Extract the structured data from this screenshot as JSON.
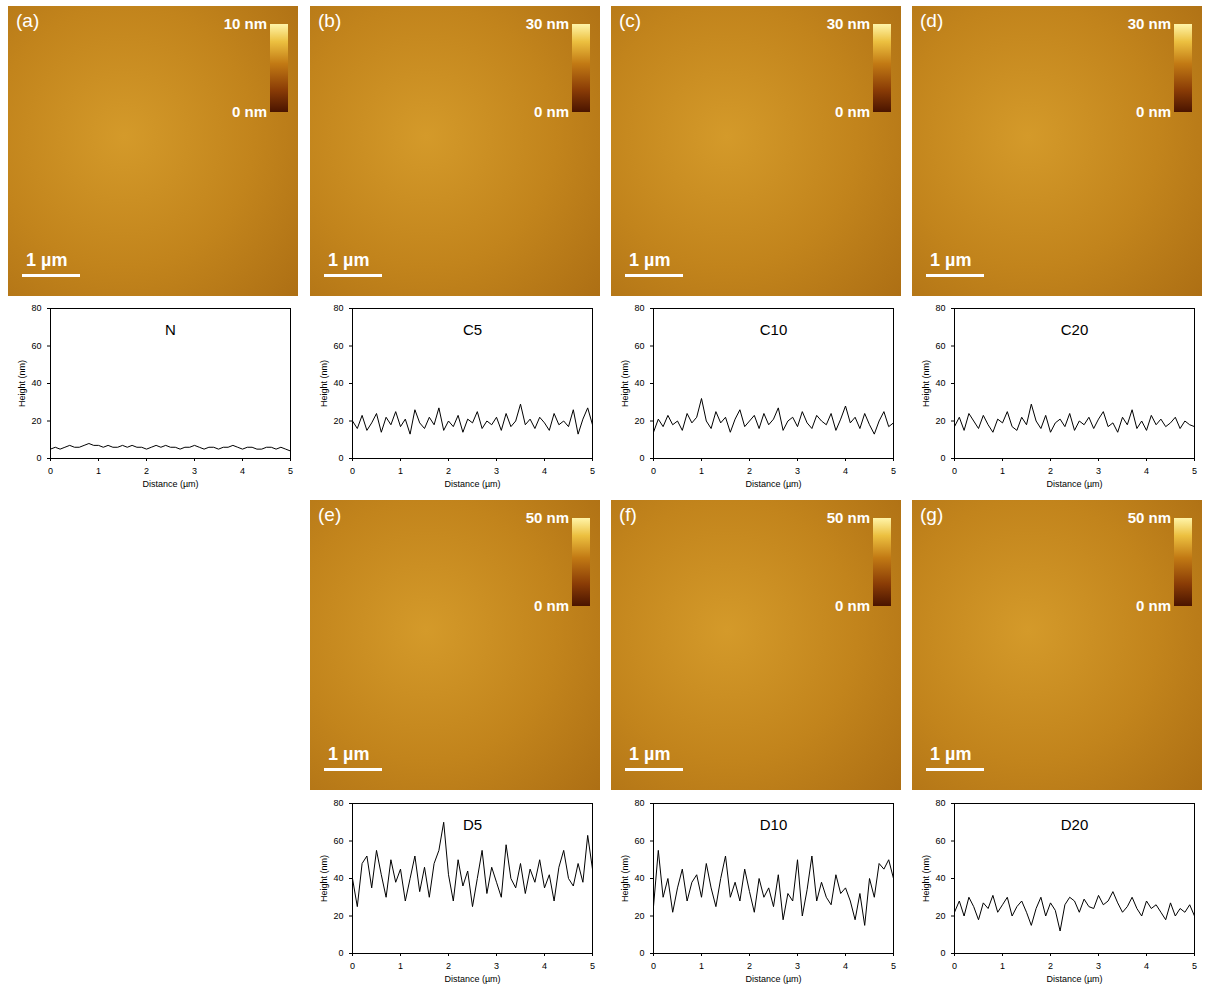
{
  "images": [
    {
      "letter": "(a)",
      "colorbar": {
        "range": [
          0,
          10
        ],
        "ticks": [
          {
            "value": 0,
            "label": "0 nm"
          },
          {
            "value": 10,
            "label": "10 nm"
          }
        ]
      },
      "scale_bar": "1 µm"
    },
    {
      "letter": "(b)",
      "colorbar": {
        "range": [
          0,
          30
        ],
        "ticks": [
          {
            "value": 0,
            "label": "0 nm"
          },
          {
            "value": 30,
            "label": "30 nm"
          }
        ]
      },
      "scale_bar": "1 µm"
    },
    {
      "letter": "(c)",
      "colorbar": {
        "range": [
          0,
          30
        ],
        "ticks": [
          {
            "value": 0,
            "label": "0 nm"
          },
          {
            "value": 30,
            "label": "30 nm"
          }
        ]
      },
      "scale_bar": "1 µm"
    },
    {
      "letter": "(d)",
      "colorbar": {
        "range": [
          0,
          30
        ],
        "ticks": [
          {
            "value": 0,
            "label": "0 nm"
          },
          {
            "value": 30,
            "label": "30 nm"
          }
        ]
      },
      "scale_bar": "1 µm"
    },
    {
      "letter": "(e)",
      "colorbar": {
        "range": [
          0,
          50
        ],
        "ticks": [
          {
            "value": 0,
            "label": "0 nm"
          },
          {
            "value": 50,
            "label": "50 nm"
          }
        ]
      },
      "scale_bar": "1 µm"
    },
    {
      "letter": "(f)",
      "colorbar": {
        "range": [
          0,
          50
        ],
        "ticks": [
          {
            "value": 0,
            "label": "0 nm"
          },
          {
            "value": 50,
            "label": "50 nm"
          }
        ]
      },
      "scale_bar": "1 µm"
    },
    {
      "letter": "(g)",
      "colorbar": {
        "range": [
          0,
          50
        ],
        "ticks": [
          {
            "value": 0,
            "label": "0 nm"
          },
          {
            "value": 50,
            "label": "50 nm"
          }
        ]
      },
      "scale_bar": "1 µm"
    }
  ],
  "chart_data": [
    {
      "type": "line",
      "title": "N",
      "x_label": "Distance (µm)",
      "y_label": "Height (nm)",
      "color": "#000000",
      "xlim": [
        0,
        5
      ],
      "ylim": [
        0,
        80
      ],
      "xticks": [
        0,
        1,
        2,
        3,
        4,
        5
      ],
      "yticks": [
        0,
        20,
        40,
        60,
        80
      ],
      "x": [
        0,
        0.1,
        0.2,
        0.3,
        0.4,
        0.5,
        0.6,
        0.7,
        0.8,
        0.9,
        1,
        1.1,
        1.2,
        1.3,
        1.4,
        1.5,
        1.6,
        1.7,
        1.8,
        1.9,
        2,
        2.1,
        2.2,
        2.3,
        2.4,
        2.5,
        2.6,
        2.7,
        2.8,
        2.9,
        3,
        3.1,
        3.2,
        3.3,
        3.4,
        3.5,
        3.6,
        3.7,
        3.8,
        3.9,
        4,
        4.1,
        4.2,
        4.3,
        4.4,
        4.5,
        4.6,
        4.7,
        4.8,
        4.9,
        5
      ],
      "values": [
        5,
        6,
        5,
        6,
        7,
        6,
        6,
        7,
        8,
        7,
        7,
        6,
        7,
        6,
        6,
        7,
        6,
        7,
        6,
        6,
        5,
        6,
        7,
        6,
        7,
        6,
        6,
        5,
        6,
        6,
        7,
        6,
        5,
        6,
        6,
        5,
        6,
        6,
        7,
        6,
        5,
        6,
        6,
        5,
        5,
        6,
        6,
        5,
        6,
        5,
        4
      ]
    },
    {
      "type": "line",
      "title": "C5",
      "x_label": "Distance (µm)",
      "y_label": "Height (nm)",
      "color": "#000000",
      "xlim": [
        0,
        5
      ],
      "ylim": [
        0,
        80
      ],
      "xticks": [
        0,
        1,
        2,
        3,
        4,
        5
      ],
      "yticks": [
        0,
        20,
        40,
        60,
        80
      ],
      "x": [
        0,
        0.1,
        0.2,
        0.3,
        0.4,
        0.5,
        0.6,
        0.7,
        0.8,
        0.9,
        1,
        1.1,
        1.2,
        1.3,
        1.4,
        1.5,
        1.6,
        1.7,
        1.8,
        1.9,
        2,
        2.1,
        2.2,
        2.3,
        2.4,
        2.5,
        2.6,
        2.7,
        2.8,
        2.9,
        3,
        3.1,
        3.2,
        3.3,
        3.4,
        3.5,
        3.6,
        3.7,
        3.8,
        3.9,
        4,
        4.1,
        4.2,
        4.3,
        4.4,
        4.5,
        4.6,
        4.7,
        4.8,
        4.9,
        5
      ],
      "values": [
        20,
        16,
        23,
        15,
        19,
        24,
        14,
        22,
        18,
        25,
        17,
        21,
        13,
        26,
        19,
        16,
        22,
        18,
        27,
        15,
        20,
        17,
        23,
        14,
        21,
        19,
        25,
        16,
        20,
        18,
        22,
        15,
        24,
        17,
        20,
        29,
        18,
        21,
        16,
        22,
        19,
        15,
        24,
        18,
        20,
        17,
        26,
        13,
        21,
        27,
        18
      ]
    },
    {
      "type": "line",
      "title": "C10",
      "x_label": "Distance (µm)",
      "y_label": "Height (nm)",
      "color": "#000000",
      "xlim": [
        0,
        5
      ],
      "ylim": [
        0,
        80
      ],
      "xticks": [
        0,
        1,
        2,
        3,
        4,
        5
      ],
      "yticks": [
        0,
        20,
        40,
        60,
        80
      ],
      "x": [
        0,
        0.1,
        0.2,
        0.3,
        0.4,
        0.5,
        0.6,
        0.7,
        0.8,
        0.9,
        1,
        1.1,
        1.2,
        1.3,
        1.4,
        1.5,
        1.6,
        1.7,
        1.8,
        1.9,
        2,
        2.1,
        2.2,
        2.3,
        2.4,
        2.5,
        2.6,
        2.7,
        2.8,
        2.9,
        3,
        3.1,
        3.2,
        3.3,
        3.4,
        3.5,
        3.6,
        3.7,
        3.8,
        3.9,
        4,
        4.1,
        4.2,
        4.3,
        4.4,
        4.5,
        4.6,
        4.7,
        4.8,
        4.9,
        5
      ],
      "values": [
        14,
        21,
        17,
        23,
        18,
        20,
        15,
        24,
        19,
        22,
        32,
        20,
        16,
        25,
        19,
        22,
        14,
        21,
        26,
        17,
        20,
        23,
        16,
        24,
        18,
        21,
        27,
        15,
        20,
        22,
        17,
        25,
        19,
        16,
        23,
        20,
        18,
        24,
        15,
        21,
        28,
        19,
        22,
        16,
        24,
        18,
        13,
        20,
        25,
        17,
        19
      ]
    },
    {
      "type": "line",
      "title": "C20",
      "x_label": "Distance (µm)",
      "y_label": "Height (nm)",
      "color": "#000000",
      "xlim": [
        0,
        5
      ],
      "ylim": [
        0,
        80
      ],
      "xticks": [
        0,
        1,
        2,
        3,
        4,
        5
      ],
      "yticks": [
        0,
        20,
        40,
        60,
        80
      ],
      "x": [
        0,
        0.1,
        0.2,
        0.3,
        0.4,
        0.5,
        0.6,
        0.7,
        0.8,
        0.9,
        1,
        1.1,
        1.2,
        1.3,
        1.4,
        1.5,
        1.6,
        1.7,
        1.8,
        1.9,
        2,
        2.1,
        2.2,
        2.3,
        2.4,
        2.5,
        2.6,
        2.7,
        2.8,
        2.9,
        3,
        3.1,
        3.2,
        3.3,
        3.4,
        3.5,
        3.6,
        3.7,
        3.8,
        3.9,
        4,
        4.1,
        4.2,
        4.3,
        4.4,
        4.5,
        4.6,
        4.7,
        4.8,
        4.9,
        5
      ],
      "values": [
        17,
        22,
        15,
        24,
        20,
        16,
        23,
        18,
        14,
        21,
        19,
        25,
        17,
        15,
        22,
        18,
        29,
        20,
        16,
        23,
        14,
        19,
        21,
        17,
        24,
        15,
        20,
        18,
        22,
        16,
        21,
        25,
        17,
        19,
        14,
        22,
        18,
        26,
        16,
        20,
        15,
        23,
        18,
        21,
        17,
        19,
        22,
        16,
        20,
        18,
        17
      ]
    },
    {
      "type": "line",
      "title": "D5",
      "x_label": "Distance (µm)",
      "y_label": "Height (nm)",
      "color": "#000000",
      "xlim": [
        0,
        5
      ],
      "ylim": [
        0,
        80
      ],
      "xticks": [
        0,
        1,
        2,
        3,
        4,
        5
      ],
      "yticks": [
        0,
        20,
        40,
        60,
        80
      ],
      "x": [
        0,
        0.1,
        0.2,
        0.3,
        0.4,
        0.5,
        0.6,
        0.7,
        0.8,
        0.9,
        1,
        1.1,
        1.2,
        1.3,
        1.4,
        1.5,
        1.6,
        1.7,
        1.8,
        1.9,
        2,
        2.1,
        2.2,
        2.3,
        2.4,
        2.5,
        2.6,
        2.7,
        2.8,
        2.9,
        3,
        3.1,
        3.2,
        3.3,
        3.4,
        3.5,
        3.6,
        3.7,
        3.8,
        3.9,
        4,
        4.1,
        4.2,
        4.3,
        4.4,
        4.5,
        4.6,
        4.7,
        4.8,
        4.9,
        5
      ],
      "values": [
        40,
        25,
        48,
        52,
        35,
        55,
        42,
        30,
        50,
        38,
        45,
        28,
        40,
        52,
        33,
        46,
        30,
        48,
        55,
        70,
        42,
        28,
        50,
        36,
        44,
        25,
        40,
        55,
        32,
        46,
        38,
        30,
        58,
        40,
        35,
        48,
        32,
        45,
        38,
        50,
        35,
        42,
        28,
        46,
        55,
        40,
        36,
        48,
        38,
        63,
        45
      ]
    },
    {
      "type": "line",
      "title": "D10",
      "x_label": "Distance (µm)",
      "y_label": "Height (nm)",
      "color": "#000000",
      "xlim": [
        0,
        5
      ],
      "ylim": [
        0,
        80
      ],
      "xticks": [
        0,
        1,
        2,
        3,
        4,
        5
      ],
      "yticks": [
        0,
        20,
        40,
        60,
        80
      ],
      "x": [
        0,
        0.1,
        0.2,
        0.3,
        0.4,
        0.5,
        0.6,
        0.7,
        0.8,
        0.9,
        1,
        1.1,
        1.2,
        1.3,
        1.4,
        1.5,
        1.6,
        1.7,
        1.8,
        1.9,
        2,
        2.1,
        2.2,
        2.3,
        2.4,
        2.5,
        2.6,
        2.7,
        2.8,
        2.9,
        3,
        3.1,
        3.2,
        3.3,
        3.4,
        3.5,
        3.6,
        3.7,
        3.8,
        3.9,
        4,
        4.1,
        4.2,
        4.3,
        4.4,
        4.5,
        4.6,
        4.7,
        4.8,
        4.9,
        5
      ],
      "values": [
        25,
        55,
        30,
        40,
        22,
        35,
        45,
        28,
        38,
        42,
        30,
        48,
        35,
        25,
        40,
        52,
        30,
        38,
        28,
        45,
        33,
        22,
        40,
        30,
        35,
        25,
        42,
        18,
        32,
        28,
        50,
        20,
        34,
        52,
        28,
        38,
        30,
        26,
        42,
        32,
        35,
        28,
        18,
        32,
        15,
        40,
        30,
        48,
        45,
        50,
        40
      ]
    },
    {
      "type": "line",
      "title": "D20",
      "x_label": "Distance (µm)",
      "y_label": "Height (nm)",
      "color": "#000000",
      "xlim": [
        0,
        5
      ],
      "ylim": [
        0,
        80
      ],
      "xticks": [
        0,
        1,
        2,
        3,
        4,
        5
      ],
      "yticks": [
        0,
        20,
        40,
        60,
        80
      ],
      "x": [
        0,
        0.1,
        0.2,
        0.3,
        0.4,
        0.5,
        0.6,
        0.7,
        0.8,
        0.9,
        1,
        1.1,
        1.2,
        1.3,
        1.4,
        1.5,
        1.6,
        1.7,
        1.8,
        1.9,
        2,
        2.1,
        2.2,
        2.3,
        2.4,
        2.5,
        2.6,
        2.7,
        2.8,
        2.9,
        3,
        3.1,
        3.2,
        3.3,
        3.4,
        3.5,
        3.6,
        3.7,
        3.8,
        3.9,
        4,
        4.1,
        4.2,
        4.3,
        4.4,
        4.5,
        4.6,
        4.7,
        4.8,
        4.9,
        5
      ],
      "values": [
        22,
        28,
        20,
        30,
        25,
        18,
        27,
        24,
        31,
        22,
        26,
        30,
        20,
        25,
        28,
        22,
        15,
        24,
        30,
        20,
        27,
        23,
        12,
        26,
        30,
        28,
        22,
        29,
        25,
        24,
        31,
        26,
        28,
        33,
        27,
        22,
        25,
        30,
        24,
        20,
        28,
        24,
        26,
        22,
        18,
        27,
        20,
        24,
        22,
        26,
        20
      ]
    }
  ]
}
